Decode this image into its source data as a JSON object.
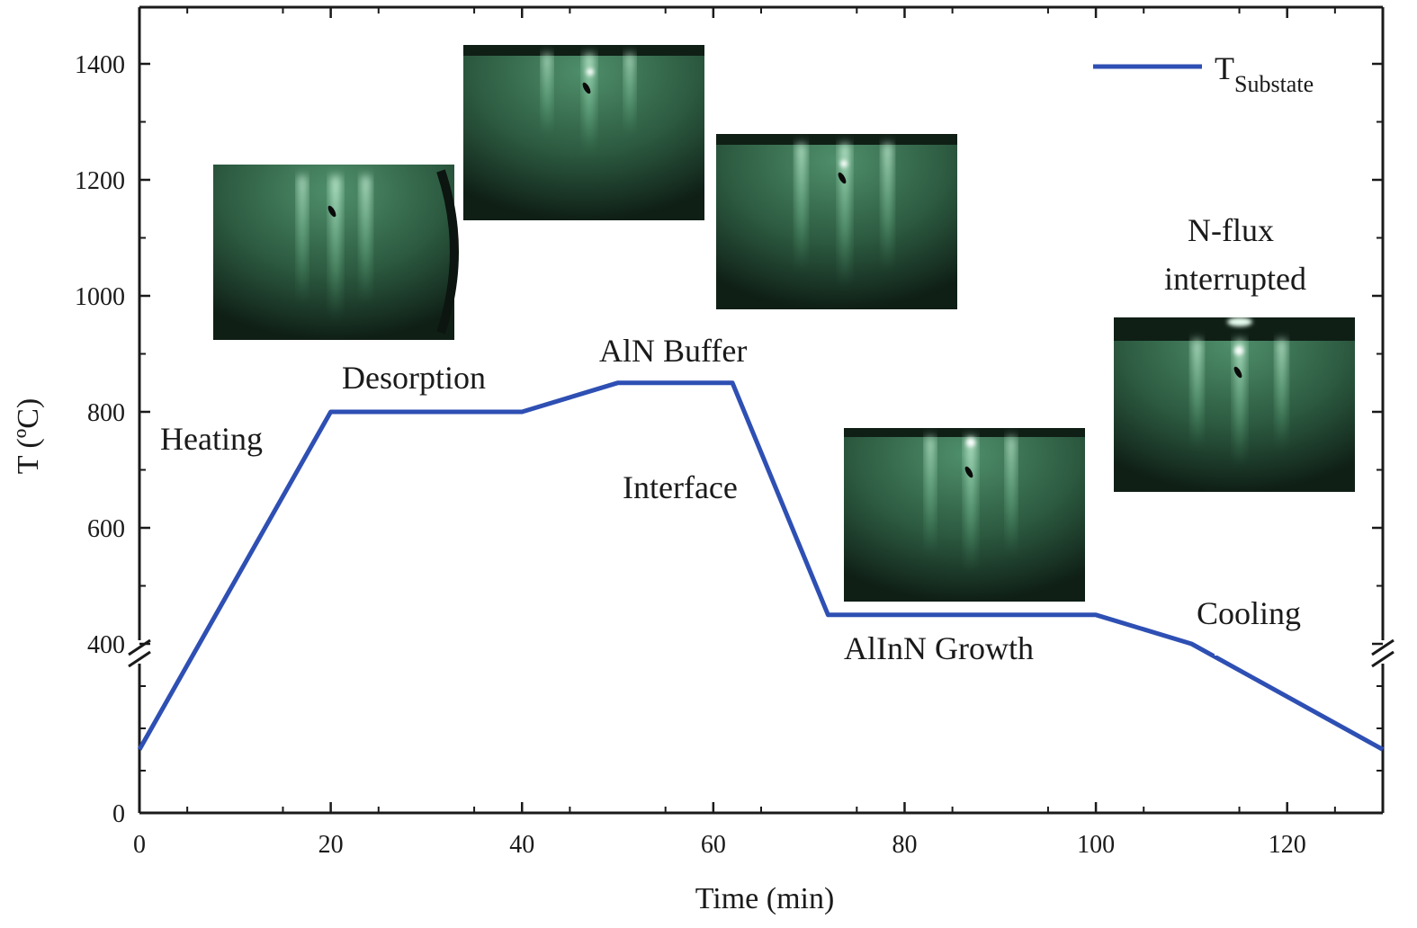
{
  "chart_data": {
    "type": "line",
    "xlabel": "Time (min)",
    "ylabel": "T (ºC)",
    "xlim": [
      0,
      130
    ],
    "ylim_upper_segment": [
      400,
      1450
    ],
    "ylim_lower_segment": [
      0,
      400
    ],
    "broken_y_axis": true,
    "x_ticks": [
      "0",
      "20",
      "40",
      "60",
      "80",
      "100",
      "120"
    ],
    "x_tick_values": [
      0,
      20,
      40,
      60,
      80,
      100,
      120
    ],
    "y_ticks": [
      "0",
      "400",
      "600",
      "800",
      "1000",
      "1200",
      "1400"
    ],
    "y_tick_values": [
      0,
      400,
      600,
      800,
      1000,
      1200,
      1400
    ],
    "legend": {
      "label_main": "T",
      "label_sub": "Substate",
      "position": "top-right",
      "color": "#2e4fb3"
    },
    "series": [
      {
        "name": "T_Substate",
        "color": "#2e4fb3",
        "x": [
          0,
          20,
          40,
          50,
          62,
          72,
          100,
          110,
          130
        ],
        "y": [
          150,
          800,
          800,
          850,
          850,
          450,
          450,
          400,
          150
        ]
      }
    ],
    "annotations": [
      {
        "key": "heating",
        "text": "Heating"
      },
      {
        "key": "desorption",
        "text": "Desorption"
      },
      {
        "key": "aln_buffer",
        "text": "AlN Buffer"
      },
      {
        "key": "interface",
        "text": "Interface"
      },
      {
        "key": "allnn_growth",
        "text": "AlInN Growth"
      },
      {
        "key": "cooling",
        "text": "Cooling"
      },
      {
        "key": "nflux_1",
        "text": "N-flux"
      },
      {
        "key": "nflux_2",
        "text": "interrupted"
      }
    ],
    "insets": [
      {
        "key": "rheed-1"
      },
      {
        "key": "rheed-2"
      },
      {
        "key": "rheed-3"
      },
      {
        "key": "rheed-4"
      },
      {
        "key": "rheed-5"
      }
    ]
  }
}
